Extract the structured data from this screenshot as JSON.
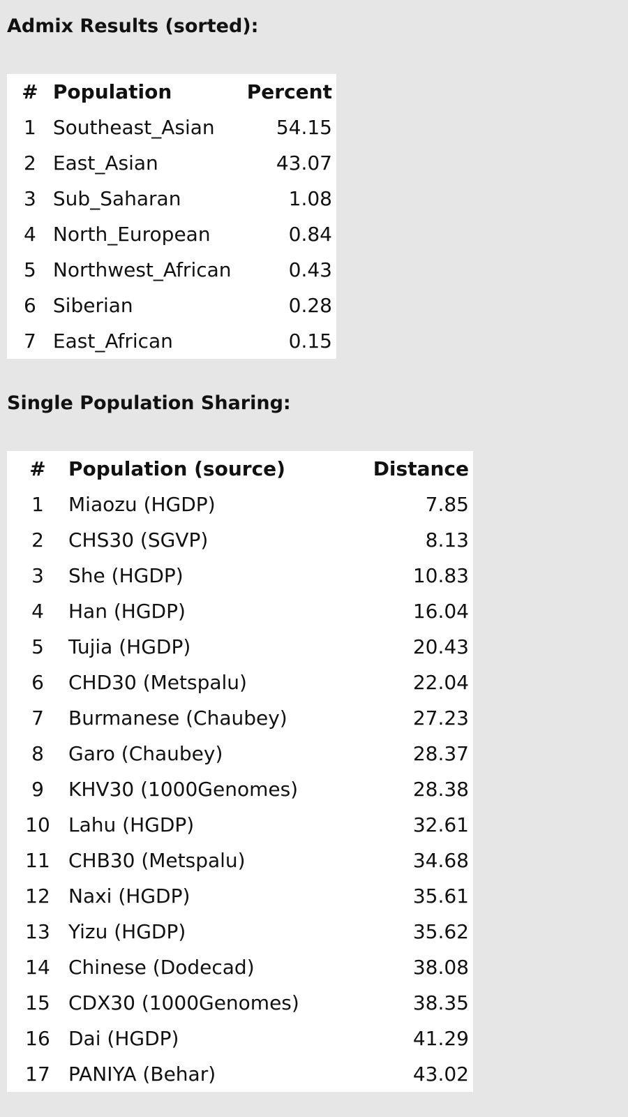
{
  "admix": {
    "title": "Admix Results (sorted):",
    "headers": {
      "num": "#",
      "population": "Population",
      "value": "Percent"
    },
    "rows": [
      {
        "num": "1",
        "population": "Southeast_Asian",
        "value": "54.15"
      },
      {
        "num": "2",
        "population": "East_Asian",
        "value": "43.07"
      },
      {
        "num": "3",
        "population": "Sub_Saharan",
        "value": "1.08"
      },
      {
        "num": "4",
        "population": "North_European",
        "value": "0.84"
      },
      {
        "num": "5",
        "population": "Northwest_African",
        "value": "0.43"
      },
      {
        "num": "6",
        "population": "Siberian",
        "value": "0.28"
      },
      {
        "num": "7",
        "population": "East_African",
        "value": "0.15"
      }
    ]
  },
  "sharing": {
    "title": "Single Population Sharing:",
    "headers": {
      "num": "#",
      "population": "Population (source)",
      "value": "Distance"
    },
    "rows": [
      {
        "num": "1",
        "population": "Miaozu (HGDP)",
        "value": "7.85"
      },
      {
        "num": "2",
        "population": "CHS30 (SGVP)",
        "value": "8.13"
      },
      {
        "num": "3",
        "population": "She (HGDP)",
        "value": "10.83"
      },
      {
        "num": "4",
        "population": "Han (HGDP)",
        "value": "16.04"
      },
      {
        "num": "5",
        "population": "Tujia (HGDP)",
        "value": "20.43"
      },
      {
        "num": "6",
        "population": "CHD30 (Metspalu)",
        "value": "22.04"
      },
      {
        "num": "7",
        "population": "Burmanese (Chaubey)",
        "value": "27.23"
      },
      {
        "num": "8",
        "population": "Garo (Chaubey)",
        "value": "28.37"
      },
      {
        "num": "9",
        "population": "KHV30 (1000Genomes)",
        "value": "28.38"
      },
      {
        "num": "10",
        "population": "Lahu (HGDP)",
        "value": "32.61"
      },
      {
        "num": "11",
        "population": "CHB30 (Metspalu)",
        "value": "34.68"
      },
      {
        "num": "12",
        "population": "Naxi (HGDP)",
        "value": "35.61"
      },
      {
        "num": "13",
        "population": "Yizu (HGDP)",
        "value": "35.62"
      },
      {
        "num": "14",
        "population": "Chinese (Dodecad)",
        "value": "38.08"
      },
      {
        "num": "15",
        "population": "CDX30 (1000Genomes)",
        "value": "38.35"
      },
      {
        "num": "16",
        "population": "Dai (HGDP)",
        "value": "41.29"
      },
      {
        "num": "17",
        "population": "PANIYA (Behar)",
        "value": "43.02"
      }
    ]
  }
}
